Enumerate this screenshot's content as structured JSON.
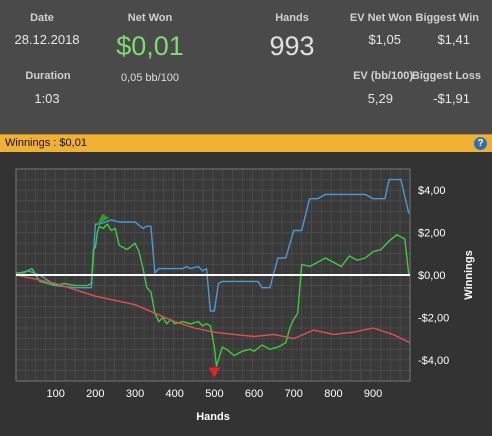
{
  "stats": {
    "date_label": "Date",
    "date_value": "28.12.2018",
    "net_won_label": "Net Won",
    "net_won_value": "$0,01",
    "net_won_bb": "0,05 bb/100",
    "hands_label": "Hands",
    "hands_value": "993",
    "ev_net_won_label": "EV Net Won",
    "ev_net_won_value": "$1,05",
    "biggest_win_label": "Biggest Win",
    "biggest_win_value": "$1,41",
    "duration_label": "Duration",
    "duration_value": "1:03",
    "ev_bb_label": "EV (bb/100)",
    "ev_bb_value": "5,29",
    "biggest_loss_label": "Biggest Loss",
    "biggest_loss_value": "-$1,91"
  },
  "colors": {
    "net_won": "#7ddc6e",
    "header_bar": "#f0b030",
    "help_icon": "#2f6fb8"
  },
  "panel": {
    "title": "Winnings : $0,01",
    "help_icon": "question-mark-icon"
  },
  "chart_data": {
    "type": "line",
    "xlabel": "Hands",
    "ylabel": "Winnings",
    "xlim": [
      0,
      993
    ],
    "ylim": [
      -5,
      5
    ],
    "x_ticks": [
      "100",
      "200",
      "300",
      "400",
      "500",
      "600",
      "700",
      "800",
      "900"
    ],
    "y_ticks": [
      "$4,00",
      "$2,00",
      "$0,00",
      "-$2,00",
      "-$4,00"
    ],
    "y_tick_values": [
      4,
      2,
      0,
      -2,
      -4
    ],
    "grid": true,
    "series": [
      {
        "color": "#4a9ad8",
        "x": [
          0,
          30,
          60,
          100,
          150,
          190,
          200,
          210,
          240,
          260,
          300,
          320,
          330,
          340,
          350,
          360,
          400,
          420,
          430,
          440,
          450,
          460,
          470,
          480,
          490,
          500,
          510,
          520,
          540,
          560,
          580,
          600,
          610,
          620,
          630,
          640,
          660,
          680,
          700,
          720,
          740,
          760,
          780,
          800,
          820,
          840,
          860,
          880,
          900,
          930,
          940,
          950,
          970,
          990
        ],
        "values": [
          0.05,
          0.2,
          0.0,
          -0.5,
          -0.6,
          -0.6,
          2.4,
          2.4,
          2.6,
          2.5,
          2.5,
          2.2,
          2.3,
          2.3,
          0.1,
          0.3,
          0.3,
          0.3,
          0.4,
          0.3,
          0.35,
          0.4,
          0.2,
          0.3,
          -1.7,
          -1.7,
          -0.4,
          -0.3,
          -0.3,
          -0.3,
          -0.3,
          -0.3,
          -0.3,
          -0.6,
          -0.6,
          -0.6,
          0.8,
          0.8,
          2.1,
          2.1,
          3.6,
          3.6,
          3.8,
          3.8,
          3.8,
          3.8,
          3.8,
          3.8,
          3.6,
          3.6,
          4.5,
          4.5,
          4.5,
          2.9
        ]
      },
      {
        "color": "#3ccc3c",
        "x": [
          0,
          20,
          40,
          60,
          80,
          100,
          120,
          150,
          180,
          190,
          195,
          200,
          205,
          210,
          220,
          230,
          240,
          250,
          260,
          280,
          300,
          310,
          320,
          330,
          340,
          350,
          360,
          370,
          380,
          390,
          400,
          420,
          440,
          460,
          470,
          480,
          490,
          500,
          505,
          510,
          520,
          530,
          550,
          570,
          590,
          600,
          620,
          640,
          660,
          680,
          690,
          700,
          710,
          720,
          740,
          760,
          780,
          800,
          820,
          840,
          860,
          880,
          900,
          920,
          940,
          960,
          980,
          990
        ],
        "values": [
          0.1,
          0.1,
          0.3,
          -0.3,
          -0.4,
          -0.5,
          -0.4,
          -0.5,
          -0.5,
          -0.4,
          1.2,
          1.3,
          2.0,
          2.3,
          2.2,
          2.4,
          2.1,
          2.2,
          1.4,
          1.2,
          1.5,
          1.1,
          0.3,
          -0.6,
          -0.8,
          -1.8,
          -2.2,
          -2.0,
          -2.3,
          -2.1,
          -2.3,
          -2.2,
          -2.3,
          -2.2,
          -2.4,
          -2.3,
          -2.4,
          -3.4,
          -4.3,
          -4.0,
          -3.4,
          -3.5,
          -3.8,
          -3.6,
          -3.5,
          -3.6,
          -3.3,
          -3.5,
          -3.4,
          -3.2,
          -2.5,
          -2.1,
          -1.8,
          0.5,
          0.4,
          0.6,
          0.8,
          0.6,
          0.4,
          0.9,
          0.7,
          0.8,
          1.1,
          1.2,
          1.6,
          1.9,
          1.7,
          0.01
        ]
      },
      {
        "color": "#e05050",
        "x": [
          0,
          50,
          100,
          150,
          200,
          250,
          300,
          350,
          400,
          450,
          500,
          550,
          600,
          650,
          700,
          750,
          800,
          850,
          900,
          950,
          993
        ],
        "values": [
          0.0,
          -0.2,
          -0.4,
          -0.7,
          -1.0,
          -1.2,
          -1.4,
          -1.8,
          -2.2,
          -2.5,
          -2.7,
          -2.8,
          -2.9,
          -2.8,
          -3.0,
          -2.6,
          -2.8,
          -2.7,
          -2.5,
          -2.8,
          -3.2
        ]
      }
    ],
    "annotations": [
      {
        "type": "max-flag",
        "x": 210,
        "y": 2.6,
        "color": "#2aa02a"
      },
      {
        "type": "min-marker",
        "x": 500,
        "y": -4.6,
        "color": "#e82020"
      }
    ]
  }
}
